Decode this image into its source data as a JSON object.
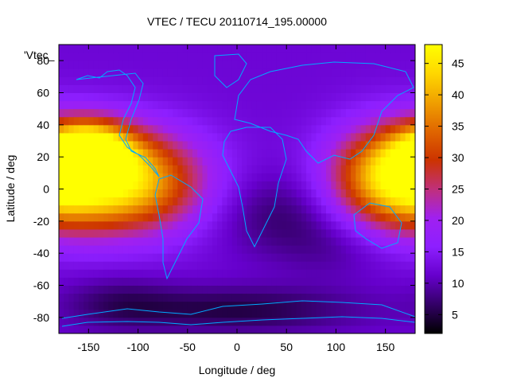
{
  "chart_data": {
    "type": "heatmap",
    "title": "VTEC / TECU 20110714_195.00000",
    "xlabel": "Longitude / deg",
    "ylabel": "Latitude / deg",
    "key_label": "'Vtec_",
    "xlim": [
      -180,
      180
    ],
    "ylim": [
      -90,
      90
    ],
    "x_ticks": [
      -150,
      -100,
      -50,
      0,
      50,
      100,
      150
    ],
    "y_ticks": [
      -80,
      -60,
      -40,
      -20,
      0,
      20,
      40,
      60,
      80
    ],
    "colorbar": {
      "range": [
        2,
        48
      ],
      "ticks": [
        5,
        10,
        15,
        20,
        25,
        30,
        35,
        40,
        45
      ],
      "palette": [
        "#000000",
        "#330066",
        "#6600cc",
        "#8d1fff",
        "#a020f0",
        "#c0307a",
        "#cc3300",
        "#e06600",
        "#f0a000",
        "#ffd700",
        "#ffff00"
      ]
    },
    "grid": false,
    "features": [
      {
        "lon": -115,
        "lat": 5,
        "value": 32,
        "slon": 55,
        "slat": 22
      },
      {
        "lon": 160,
        "lat": 8,
        "value": 31,
        "slon": 45,
        "slat": 22
      },
      {
        "lon": -150,
        "lat": 25,
        "value": 27,
        "slon": 30,
        "slat": 12
      },
      {
        "lon": 40,
        "lat": -15,
        "value": -5,
        "slon": 45,
        "slat": 18
      },
      {
        "lon": 0,
        "lat": -75,
        "value": -7,
        "slon": 90,
        "slat": 10
      },
      {
        "lon": -120,
        "lat": -70,
        "value": -4,
        "slon": 40,
        "slat": 12
      },
      {
        "lon": 100,
        "lat": -35,
        "value": -3,
        "slon": 40,
        "slat": 15
      }
    ],
    "base_value": 12,
    "coastline_color": "#00aaff"
  }
}
